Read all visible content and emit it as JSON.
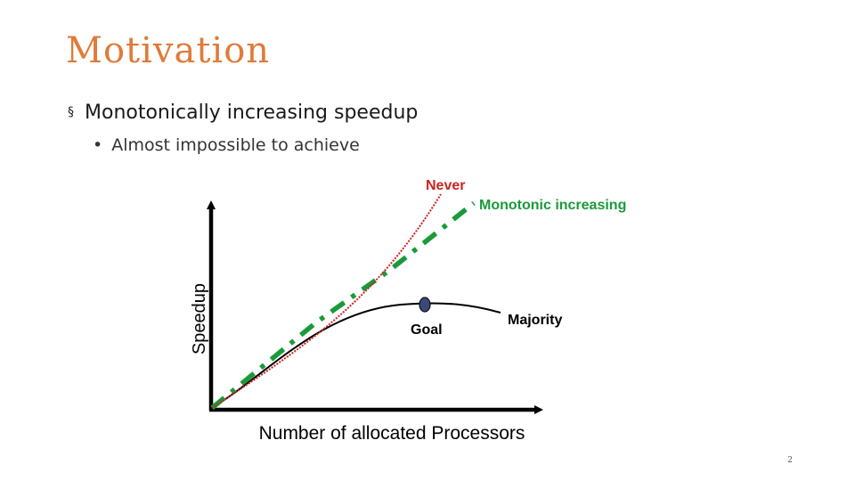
{
  "slide": {
    "title": "Motivation",
    "bullets": [
      {
        "level": 1,
        "marker": "§",
        "text": "Monotonically increasing speedup"
      },
      {
        "level": 2,
        "marker": "•",
        "text": "Almost impossible to achieve"
      }
    ],
    "page_number": "2"
  },
  "diagram": {
    "y_axis_label": "Speedup",
    "x_axis_label": "Number of allocated Processors",
    "curves": [
      {
        "label": "Never",
        "color": "#cc2222",
        "style": "dotted"
      },
      {
        "label": "Monotonic increasing",
        "color": "#1a9a3a",
        "style": "dash-dot"
      },
      {
        "label": "Majority",
        "color": "#000000",
        "style": "solid"
      }
    ],
    "goal_label": "Goal",
    "goal_marker_color": "#2c3e66"
  }
}
